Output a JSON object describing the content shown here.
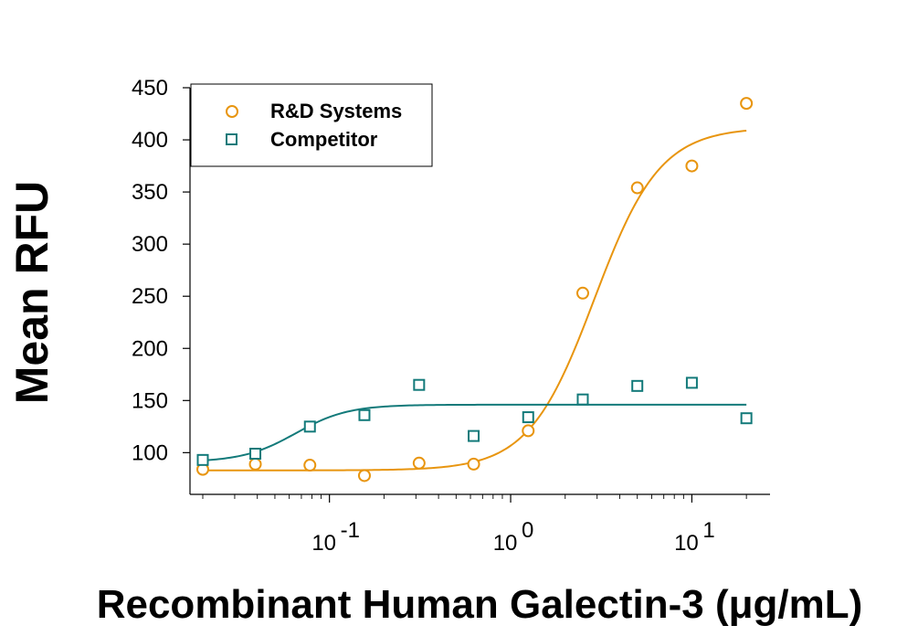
{
  "chart_data": {
    "type": "scatter",
    "title": "",
    "xlabel": "Recombinant Human Galectin-3 (μg/mL)",
    "ylabel": "Mean RFU",
    "x_scale": "log",
    "xlim": [
      0.017,
      27
    ],
    "ylim": [
      60,
      450
    ],
    "x_ticks": [
      {
        "value": 0.1,
        "label": "10",
        "exp": "-1"
      },
      {
        "value": 1,
        "label": "10",
        "exp": "0"
      },
      {
        "value": 10,
        "label": "10",
        "exp": "1"
      }
    ],
    "y_ticks": [
      100,
      150,
      200,
      250,
      300,
      350,
      400,
      450
    ],
    "grid": false,
    "legend_position": "top-left",
    "series": [
      {
        "name": "R&D Systems",
        "marker": "circle",
        "color": "#E8950F",
        "x": [
          0.02,
          0.039,
          0.078,
          0.156,
          0.3125,
          0.625,
          1.25,
          2.5,
          5,
          10,
          20
        ],
        "y": [
          84,
          89,
          88,
          78,
          90,
          89,
          121,
          253,
          354,
          375,
          435
        ],
        "fit": {
          "bottom": 83,
          "top": 412,
          "ec50": 2.9,
          "hill": 2.4
        }
      },
      {
        "name": "Competitor",
        "marker": "square",
        "color": "#137A7A",
        "x": [
          0.02,
          0.039,
          0.078,
          0.156,
          0.3125,
          0.625,
          1.25,
          2.5,
          5,
          10,
          20
        ],
        "y": [
          93,
          99,
          125,
          136,
          165,
          116,
          134,
          151,
          164,
          167,
          133
        ],
        "fit": {
          "bottom": 91,
          "top": 146,
          "ec50": 0.065,
          "hill": 3.0
        }
      }
    ]
  }
}
